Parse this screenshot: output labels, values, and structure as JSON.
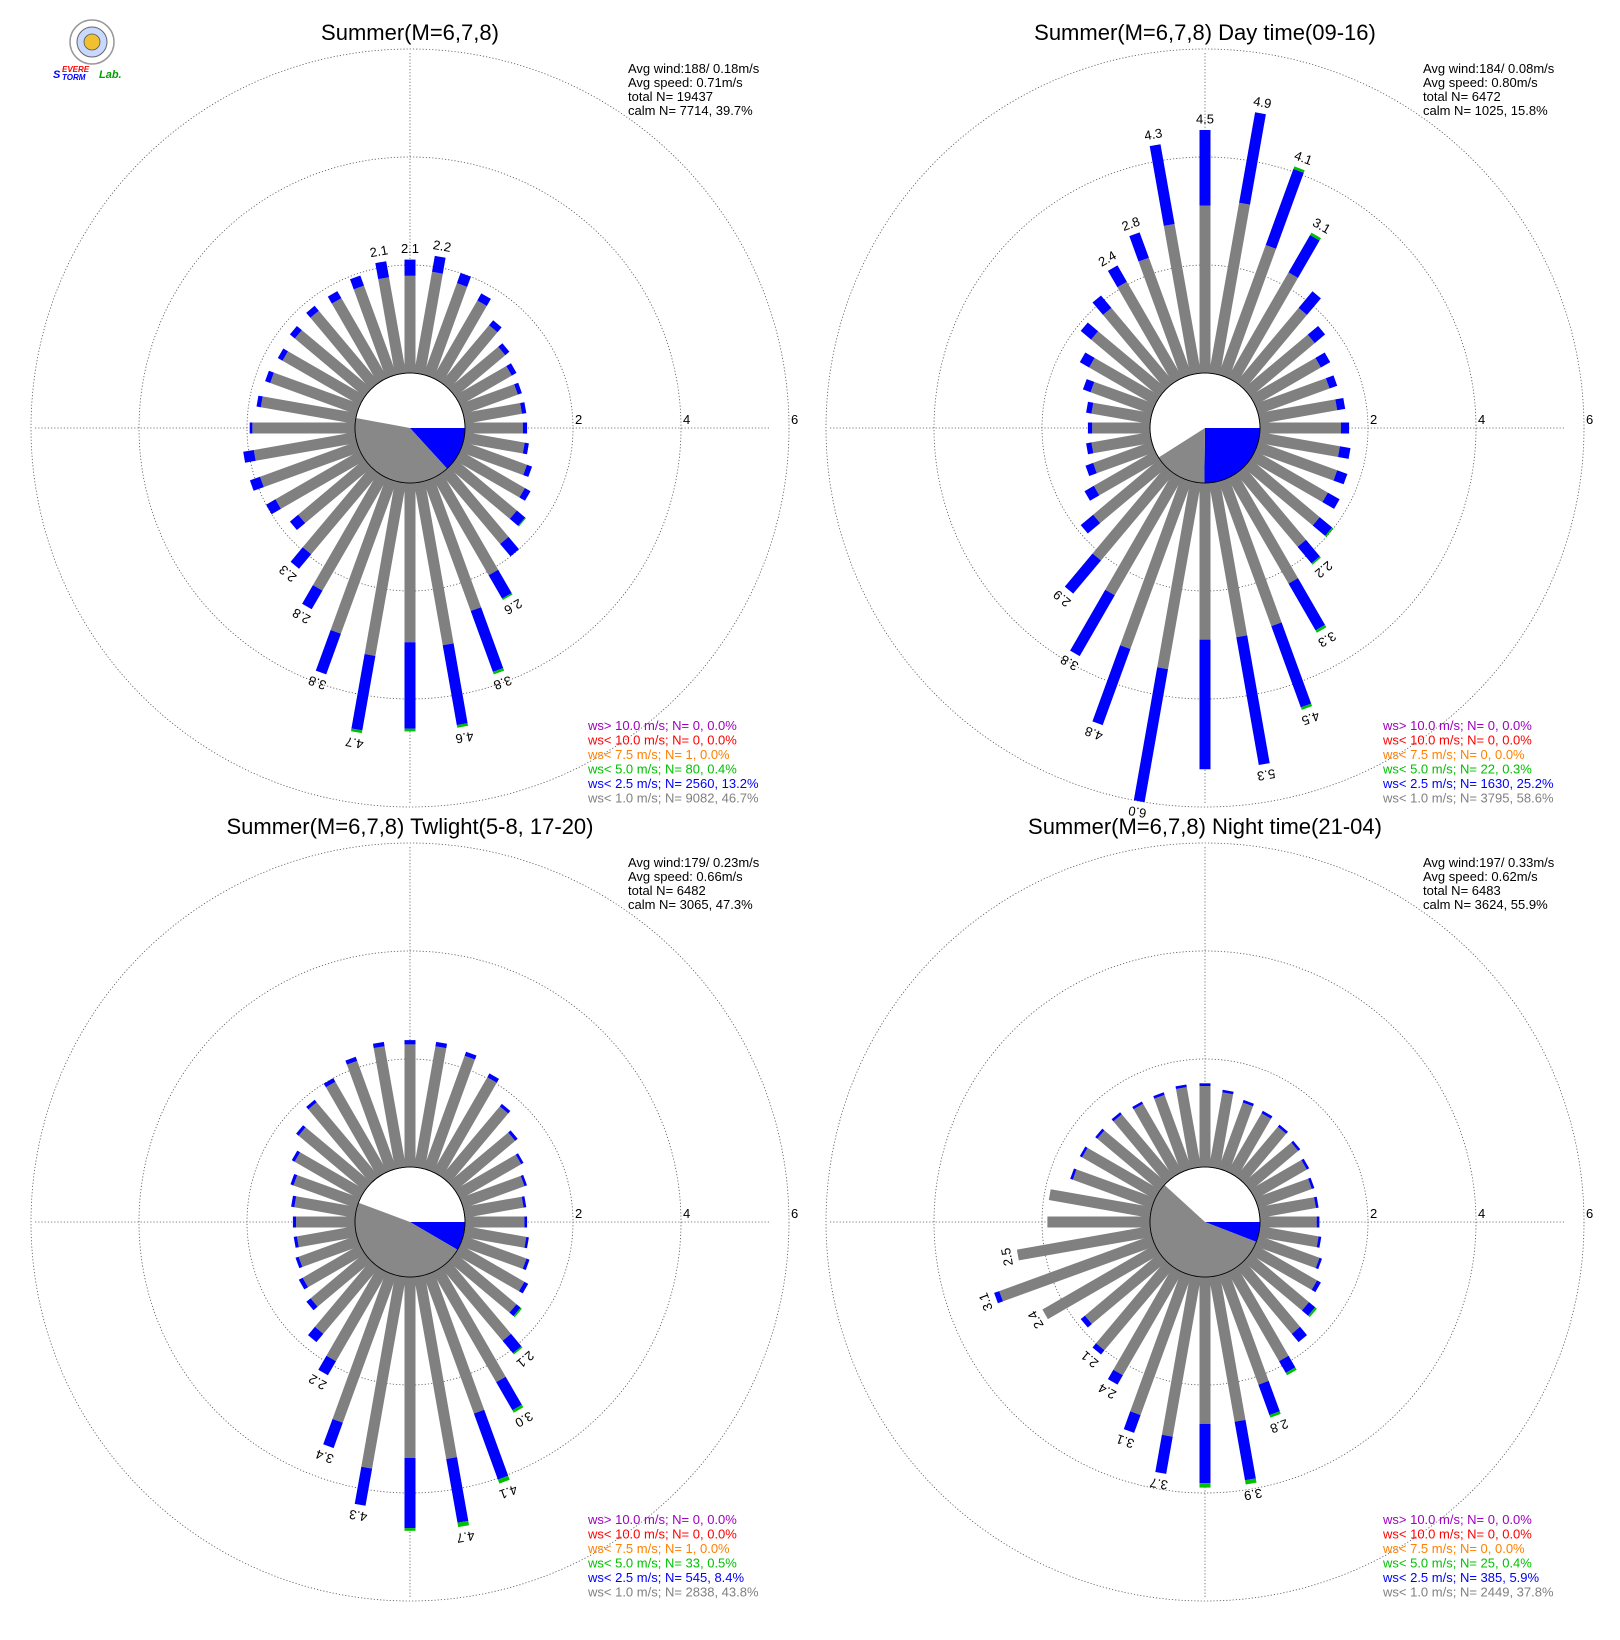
{
  "logo": {
    "text_s": "S",
    "text_evere": "EVERE",
    "text_torm": "TORM",
    "text_lab": "Lab."
  },
  "colors": {
    "calm": "#888888",
    "lt1": "#808080",
    "lt25": "#0000ff",
    "lt5": "#00c000",
    "lt75": "#ff8000",
    "lt10": "#ff0000",
    "gt10": "#a000c0"
  },
  "chart_data": [
    {
      "type": "polar-bar",
      "title": "Summer(M=6,7,8)",
      "ring_labels": [
        "2",
        "4",
        "6"
      ],
      "stats": {
        "avg_wind": "Avg wind:188/ 0.18m/s",
        "avg_speed": "Avg speed: 0.71m/s",
        "total": "total N=      19437",
        "calm": "calm N=   7714,  39.7%"
      },
      "legend": [
        {
          "text": "ws> 10.0 m/s; N=      0,  0.0%",
          "color": "#a000c0"
        },
        {
          "text": "ws< 10.0 m/s; N=      0,  0.0%",
          "color": "#ff0000"
        },
        {
          "text": "ws<  7.5 m/s; N=      1,  0.0%",
          "color": "#ff8000"
        },
        {
          "text": "ws<  5.0 m/s; N=     80,  0.4%",
          "color": "#00c000"
        },
        {
          "text": "ws<  2.5 m/s; N=   2560, 13.2%",
          "color": "#0000ff"
        },
        {
          "text": "ws<  1.0 m/s; N=   9082, 46.7%",
          "color": "#808080"
        }
      ],
      "calm_pie": {
        "calm_pct": 39.7,
        "lt25_pct": 13.2
      },
      "bars": [
        {
          "dir": 0,
          "total": 2.1,
          "blue": 0.3,
          "label": "2.1"
        },
        {
          "dir": 10,
          "total": 2.2,
          "blue": 0.3,
          "label": "2.2"
        },
        {
          "dir": 20,
          "total": 2.0,
          "blue": 0.2
        },
        {
          "dir": 30,
          "total": 1.8,
          "blue": 0.15
        },
        {
          "dir": 40,
          "total": 1.5,
          "blue": 0.12
        },
        {
          "dir": 50,
          "total": 1.3,
          "blue": 0.1
        },
        {
          "dir": 60,
          "total": 1.2,
          "blue": 0.1
        },
        {
          "dir": 70,
          "total": 1.15,
          "blue": 0.08
        },
        {
          "dir": 80,
          "total": 1.15,
          "blue": 0.08
        },
        {
          "dir": 90,
          "total": 1.15,
          "blue": 0.08
        },
        {
          "dir": 100,
          "total": 1.2,
          "blue": 0.08
        },
        {
          "dir": 110,
          "total": 1.35,
          "blue": 0.1
        },
        {
          "dir": 120,
          "total": 1.5,
          "blue": 0.12
        },
        {
          "dir": 130,
          "total": 1.7,
          "blue": 0.2,
          "green": 0.02
        },
        {
          "dir": 140,
          "total": 2.0,
          "blue": 0.3
        },
        {
          "dir": 150,
          "total": 2.6,
          "blue": 0.5,
          "green": 0.03,
          "label": "2.6"
        },
        {
          "dir": 160,
          "total": 3.8,
          "blue": 1.2,
          "green": 0.05,
          "label": "3.8"
        },
        {
          "dir": 170,
          "total": 4.6,
          "blue": 1.5,
          "green": 0.05,
          "label": "4.6"
        },
        {
          "dir": 180,
          "total": 4.6,
          "blue": 1.6,
          "green": 0.05
        },
        {
          "dir": 190,
          "total": 4.7,
          "blue": 1.4,
          "green": 0.05,
          "label": "4.7"
        },
        {
          "dir": 200,
          "total": 3.8,
          "blue": 0.8,
          "label": "3.8"
        },
        {
          "dir": 210,
          "total": 2.8,
          "blue": 0.4,
          "label": "2.8"
        },
        {
          "dir": 220,
          "total": 2.3,
          "blue": 0.35,
          "label": "2.3"
        },
        {
          "dir": 230,
          "total": 1.8,
          "blue": 0.2
        },
        {
          "dir": 240,
          "total": 2.0,
          "blue": 0.2
        },
        {
          "dir": 250,
          "total": 2.1,
          "blue": 0.2
        },
        {
          "dir": 260,
          "total": 2.1,
          "blue": 0.2
        },
        {
          "dir": 270,
          "total": 1.95,
          "blue": 0.05
        },
        {
          "dir": 280,
          "total": 1.85,
          "blue": 0.08
        },
        {
          "dir": 290,
          "total": 1.8,
          "blue": 0.1
        },
        {
          "dir": 300,
          "total": 1.75,
          "blue": 0.1
        },
        {
          "dir": 310,
          "total": 1.8,
          "blue": 0.12
        },
        {
          "dir": 320,
          "total": 1.85,
          "blue": 0.12
        },
        {
          "dir": 330,
          "total": 1.85,
          "blue": 0.15
        },
        {
          "dir": 340,
          "total": 1.95,
          "blue": 0.2
        },
        {
          "dir": 350,
          "total": 2.1,
          "blue": 0.3,
          "label": "2.1"
        }
      ]
    },
    {
      "type": "polar-bar",
      "title": "Summer(M=6,7,8) Day time(09-16)",
      "ring_labels": [
        "2",
        "4",
        "6"
      ],
      "stats": {
        "avg_wind": "Avg wind:184/ 0.08m/s",
        "avg_speed": "Avg speed: 0.80m/s",
        "total": "total N=       6472",
        "calm": "calm N=   1025,  15.8%"
      },
      "legend": [
        {
          "text": "ws> 10.0 m/s; N=      0,  0.0%",
          "color": "#a000c0"
        },
        {
          "text": "ws< 10.0 m/s; N=      0,  0.0%",
          "color": "#ff0000"
        },
        {
          "text": "ws<  7.5 m/s; N=      0,  0.0%",
          "color": "#ff8000"
        },
        {
          "text": "ws<  5.0 m/s; N=     22,  0.3%",
          "color": "#00c000"
        },
        {
          "text": "ws<  2.5 m/s; N=   1630, 25.2%",
          "color": "#0000ff"
        },
        {
          "text": "ws<  1.0 m/s; N=   3795, 58.6%",
          "color": "#808080"
        }
      ],
      "calm_pie": {
        "calm_pct": 15.8,
        "lt25_pct": 25.2
      },
      "bars": [
        {
          "dir": 0,
          "total": 4.5,
          "blue": 1.4,
          "label": "4.5"
        },
        {
          "dir": 10,
          "total": 4.9,
          "blue": 1.7,
          "label": "4.9"
        },
        {
          "dir": 20,
          "total": 4.1,
          "blue": 1.5,
          "green": 0.05,
          "label": "4.1"
        },
        {
          "dir": 30,
          "total": 3.1,
          "blue": 0.8,
          "green": 0.05,
          "label": "3.1"
        },
        {
          "dir": 40,
          "total": 2.2,
          "blue": 0.4
        },
        {
          "dir": 50,
          "total": 1.8,
          "blue": 0.25
        },
        {
          "dir": 60,
          "total": 1.6,
          "blue": 0.2
        },
        {
          "dir": 70,
          "total": 1.55,
          "blue": 0.15
        },
        {
          "dir": 80,
          "total": 1.6,
          "blue": 0.15
        },
        {
          "dir": 90,
          "total": 1.65,
          "blue": 0.15
        },
        {
          "dir": 100,
          "total": 1.7,
          "blue": 0.2
        },
        {
          "dir": 110,
          "total": 1.75,
          "blue": 0.2
        },
        {
          "dir": 120,
          "total": 1.8,
          "blue": 0.25
        },
        {
          "dir": 130,
          "total": 2.0,
          "blue": 0.3,
          "green": 0.03
        },
        {
          "dir": 140,
          "total": 2.2,
          "blue": 0.4,
          "green": 0.03,
          "label": "2.2"
        },
        {
          "dir": 150,
          "total": 3.3,
          "blue": 1.0,
          "green": 0.05,
          "label": "3.3"
        },
        {
          "dir": 160,
          "total": 4.5,
          "blue": 1.6,
          "green": 0.05,
          "label": "4.5"
        },
        {
          "dir": 170,
          "total": 5.3,
          "blue": 2.4,
          "label": "5.3"
        },
        {
          "dir": 180,
          "total": 5.3,
          "blue": 2.4
        },
        {
          "dir": 190,
          "total": 6.0,
          "blue": 2.5,
          "label": "6.0"
        },
        {
          "dir": 200,
          "total": 4.8,
          "blue": 1.5,
          "label": "4.8"
        },
        {
          "dir": 210,
          "total": 3.8,
          "blue": 1.3,
          "label": "3.8"
        },
        {
          "dir": 220,
          "total": 2.9,
          "blue": 0.8,
          "label": "2.9"
        },
        {
          "dir": 230,
          "total": 1.9,
          "blue": 0.3
        },
        {
          "dir": 240,
          "total": 1.5,
          "blue": 0.2
        },
        {
          "dir": 250,
          "total": 1.3,
          "blue": 0.15
        },
        {
          "dir": 260,
          "total": 1.2,
          "blue": 0.1
        },
        {
          "dir": 270,
          "total": 1.15,
          "blue": 0.08
        },
        {
          "dir": 280,
          "total": 1.2,
          "blue": 0.1
        },
        {
          "dir": 290,
          "total": 1.35,
          "blue": 0.15
        },
        {
          "dir": 300,
          "total": 1.6,
          "blue": 0.2
        },
        {
          "dir": 310,
          "total": 1.9,
          "blue": 0.25
        },
        {
          "dir": 320,
          "total": 2.1,
          "blue": 0.3
        },
        {
          "dir": 330,
          "total": 2.4,
          "blue": 0.35,
          "label": "2.4"
        },
        {
          "dir": 340,
          "total": 2.8,
          "blue": 0.5,
          "label": "2.8"
        },
        {
          "dir": 350,
          "total": 4.3,
          "blue": 1.5,
          "label": "4.3"
        }
      ]
    },
    {
      "type": "polar-bar",
      "title": "Summer(M=6,7,8) Twlight(5-8, 17-20)",
      "ring_labels": [
        "2",
        "4",
        "6"
      ],
      "stats": {
        "avg_wind": "Avg wind:179/ 0.23m/s",
        "avg_speed": "Avg speed: 0.66m/s",
        "total": "total N=       6482",
        "calm": "calm N=   3065,  47.3%"
      },
      "legend": [
        {
          "text": "ws> 10.0 m/s; N=      0,  0.0%",
          "color": "#a000c0"
        },
        {
          "text": "ws< 10.0 m/s; N=      0,  0.0%",
          "color": "#ff0000"
        },
        {
          "text": "ws<  7.5 m/s; N=      1,  0.0%",
          "color": "#ff8000"
        },
        {
          "text": "ws<  5.0 m/s; N=     33,  0.5%",
          "color": "#00c000"
        },
        {
          "text": "ws<  2.5 m/s; N=    545,  8.4%",
          "color": "#0000ff"
        },
        {
          "text": "ws<  1.0 m/s; N=   2838, 43.8%",
          "color": "#808080"
        }
      ],
      "calm_pie": {
        "calm_pct": 47.3,
        "lt25_pct": 8.4
      },
      "bars": [
        {
          "dir": 0,
          "total": 2.35,
          "blue": 0.08
        },
        {
          "dir": 10,
          "total": 2.35,
          "blue": 0.08
        },
        {
          "dir": 20,
          "total": 2.3,
          "blue": 0.08
        },
        {
          "dir": 30,
          "total": 2.1,
          "blue": 0.08
        },
        {
          "dir": 40,
          "total": 1.75,
          "blue": 0.06
        },
        {
          "dir": 50,
          "total": 1.5,
          "blue": 0.06
        },
        {
          "dir": 60,
          "total": 1.35,
          "blue": 0.05
        },
        {
          "dir": 70,
          "total": 1.25,
          "blue": 0.05
        },
        {
          "dir": 80,
          "total": 1.15,
          "blue": 0.05
        },
        {
          "dir": 90,
          "total": 1.15,
          "blue": 0.05
        },
        {
          "dir": 100,
          "total": 1.2,
          "blue": 0.05
        },
        {
          "dir": 110,
          "total": 1.3,
          "blue": 0.06
        },
        {
          "dir": 120,
          "total": 1.45,
          "blue": 0.08
        },
        {
          "dir": 130,
          "total": 1.6,
          "blue": 0.1,
          "green": 0.03
        },
        {
          "dir": 140,
          "total": 2.1,
          "blue": 0.3,
          "green": 0.03,
          "label": "2.1"
        },
        {
          "dir": 150,
          "total": 3.0,
          "blue": 0.6,
          "green": 0.05,
          "label": "3.0"
        },
        {
          "dir": 160,
          "total": 4.1,
          "blue": 1.3,
          "green": 0.08,
          "label": "4.1"
        },
        {
          "dir": 170,
          "total": 4.7,
          "blue": 1.2,
          "green": 0.08,
          "label": "4.7"
        },
        {
          "dir": 180,
          "total": 4.7,
          "blue": 1.3,
          "green": 0.05
        },
        {
          "dir": 190,
          "total": 4.3,
          "blue": 0.7,
          "label": "4.3"
        },
        {
          "dir": 200,
          "total": 3.4,
          "blue": 0.5,
          "label": "3.4"
        },
        {
          "dir": 210,
          "total": 2.2,
          "blue": 0.3,
          "label": "2.2"
        },
        {
          "dir": 220,
          "total": 1.8,
          "blue": 0.2
        },
        {
          "dir": 230,
          "total": 1.4,
          "blue": 0.1
        },
        {
          "dir": 240,
          "total": 1.3,
          "blue": 0.08
        },
        {
          "dir": 250,
          "total": 1.2,
          "blue": 0.06
        },
        {
          "dir": 260,
          "total": 1.15,
          "blue": 0.06
        },
        {
          "dir": 270,
          "total": 1.15,
          "blue": 0.06
        },
        {
          "dir": 280,
          "total": 1.2,
          "blue": 0.06
        },
        {
          "dir": 290,
          "total": 1.3,
          "blue": 0.06
        },
        {
          "dir": 300,
          "total": 1.45,
          "blue": 0.06
        },
        {
          "dir": 310,
          "total": 1.65,
          "blue": 0.06
        },
        {
          "dir": 320,
          "total": 1.85,
          "blue": 0.06
        },
        {
          "dir": 330,
          "total": 2.0,
          "blue": 0.08
        },
        {
          "dir": 340,
          "total": 2.2,
          "blue": 0.08
        },
        {
          "dir": 350,
          "total": 2.35,
          "blue": 0.08
        }
      ]
    },
    {
      "type": "polar-bar",
      "title": "Summer(M=6,7,8) Night time(21-04)",
      "ring_labels": [
        "2",
        "4",
        "6"
      ],
      "stats": {
        "avg_wind": "Avg wind:197/ 0.33m/s",
        "avg_speed": "Avg speed: 0.62m/s",
        "total": "total N=       6483",
        "calm": "calm N=   3624,  55.9%"
      },
      "legend": [
        {
          "text": "ws> 10.0 m/s; N=      0,  0.0%",
          "color": "#a000c0"
        },
        {
          "text": "ws< 10.0 m/s; N=      0,  0.0%",
          "color": "#ff0000"
        },
        {
          "text": "ws<  7.5 m/s; N=      0,  0.0%",
          "color": "#ff8000"
        },
        {
          "text": "ws<  5.0 m/s; N=     25,  0.4%",
          "color": "#00c000"
        },
        {
          "text": "ws<  2.5 m/s; N=    385,  5.9%",
          "color": "#0000ff"
        },
        {
          "text": "ws<  1.0 m/s; N=   2449, 37.8%",
          "color": "#808080"
        }
      ],
      "calm_pie": {
        "calm_pct": 55.9,
        "lt25_pct": 5.9
      },
      "bars": [
        {
          "dir": 0,
          "total": 1.55,
          "blue": 0.05
        },
        {
          "dir": 10,
          "total": 1.45,
          "blue": 0.05
        },
        {
          "dir": 20,
          "total": 1.35,
          "blue": 0.05
        },
        {
          "dir": 30,
          "total": 1.3,
          "blue": 0.05
        },
        {
          "dir": 40,
          "total": 1.25,
          "blue": 0.05
        },
        {
          "dir": 50,
          "total": 1.2,
          "blue": 0.05
        },
        {
          "dir": 60,
          "total": 1.15,
          "blue": 0.05
        },
        {
          "dir": 70,
          "total": 1.1,
          "blue": 0.05
        },
        {
          "dir": 80,
          "total": 1.1,
          "blue": 0.05
        },
        {
          "dir": 90,
          "total": 1.1,
          "blue": 0.05
        },
        {
          "dir": 100,
          "total": 1.15,
          "blue": 0.05
        },
        {
          "dir": 110,
          "total": 1.25,
          "blue": 0.05
        },
        {
          "dir": 120,
          "total": 1.4,
          "blue": 0.08
        },
        {
          "dir": 130,
          "total": 1.6,
          "blue": 0.15,
          "green": 0.04
        },
        {
          "dir": 140,
          "total": 1.8,
          "blue": 0.2
        },
        {
          "dir": 150,
          "total": 2.2,
          "blue": 0.25,
          "green": 0.05
        },
        {
          "dir": 160,
          "total": 2.8,
          "blue": 0.6,
          "green": 0.05,
          "label": "2.8"
        },
        {
          "dir": 170,
          "total": 3.9,
          "blue": 1.1,
          "green": 0.08,
          "label": "3.9"
        },
        {
          "dir": 180,
          "total": 3.9,
          "blue": 1.1,
          "green": 0.08
        },
        {
          "dir": 190,
          "total": 3.7,
          "blue": 0.7,
          "label": "3.7"
        },
        {
          "dir": 200,
          "total": 3.1,
          "blue": 0.35,
          "label": "3.1"
        },
        {
          "dir": 210,
          "total": 2.4,
          "blue": 0.2,
          "label": "2.4"
        },
        {
          "dir": 220,
          "total": 2.1,
          "blue": 0.1,
          "label": "2.1"
        },
        {
          "dir": 230,
          "total": 1.9,
          "blue": 0.1
        },
        {
          "dir": 240,
          "total": 2.4,
          "blue": 0.0,
          "label": "2.4"
        },
        {
          "dir": 250,
          "total": 3.1,
          "blue": 0.1,
          "label": "3.1"
        },
        {
          "dir": 260,
          "total": 2.5,
          "blue": 0.0,
          "label": "2.5"
        },
        {
          "dir": 270,
          "total": 1.9,
          "blue": 0.0
        },
        {
          "dir": 280,
          "total": 1.9,
          "blue": 0.0
        },
        {
          "dir": 290,
          "total": 1.6,
          "blue": 0.05
        },
        {
          "dir": 300,
          "total": 1.6,
          "blue": 0.05
        },
        {
          "dir": 310,
          "total": 1.55,
          "blue": 0.05
        },
        {
          "dir": 320,
          "total": 1.55,
          "blue": 0.05
        },
        {
          "dir": 330,
          "total": 1.5,
          "blue": 0.05
        },
        {
          "dir": 340,
          "total": 1.5,
          "blue": 0.05
        },
        {
          "dir": 350,
          "total": 1.55,
          "blue": 0.05
        }
      ]
    }
  ]
}
